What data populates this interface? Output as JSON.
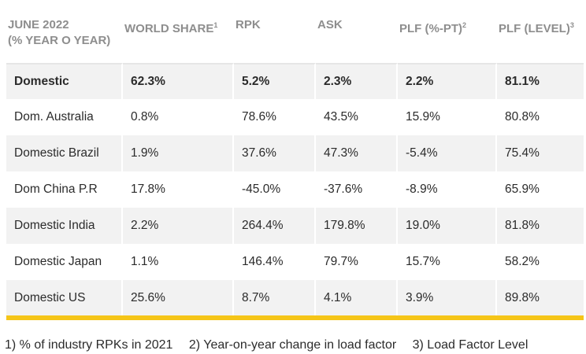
{
  "header": {
    "period_line1": "JUNE 2022",
    "period_line2": "(% YEAR O YEAR)",
    "col_world_share": "WORLD SHARE",
    "col_world_share_sup": "1",
    "col_rpk": "RPK",
    "col_ask": "ASK",
    "col_plf_pt": "PLF (%-PT)",
    "col_plf_pt_sup": "2",
    "col_plf_level": "PLF (LEVEL)",
    "col_plf_level_sup": "3"
  },
  "rows": [
    {
      "market": "Domestic",
      "world_share": "62.3%",
      "rpk": "5.2%",
      "ask": "2.3%",
      "plf_pt": "2.2%",
      "plf_level": "81.1%"
    },
    {
      "market": "Dom. Australia",
      "world_share": "0.8%",
      "rpk": "78.6%",
      "ask": "43.5%",
      "plf_pt": "15.9%",
      "plf_level": "80.8%"
    },
    {
      "market": "Domestic Brazil",
      "world_share": "1.9%",
      "rpk": "37.6%",
      "ask": "47.3%",
      "plf_pt": "-5.4%",
      "plf_level": "75.4%"
    },
    {
      "market": "Dom China P.R",
      "world_share": "17.8%",
      "rpk": "-45.0%",
      "ask": "-37.6%",
      "plf_pt": "-8.9%",
      "plf_level": "65.9%"
    },
    {
      "market": "Domestic India",
      "world_share": "2.2%",
      "rpk": "264.4%",
      "ask": "179.8%",
      "plf_pt": "19.0%",
      "plf_level": "81.8%"
    },
    {
      "market": "Domestic Japan",
      "world_share": "1.1%",
      "rpk": "146.4%",
      "ask": "79.7%",
      "plf_pt": "15.7%",
      "plf_level": "58.2%"
    },
    {
      "market": "Domestic US",
      "world_share": "25.6%",
      "rpk": "8.7%",
      "ask": "4.1%",
      "plf_pt": "3.9%",
      "plf_level": "89.8%"
    }
  ],
  "footnotes": [
    "1) % of industry RPKs in 2021",
    "2) Year-on-year change in load factor",
    "3) Load Factor Level"
  ],
  "colors": {
    "accent": "#f5c518",
    "header_text": "#8e8e8e",
    "row_shade": "#f2f2f2"
  }
}
